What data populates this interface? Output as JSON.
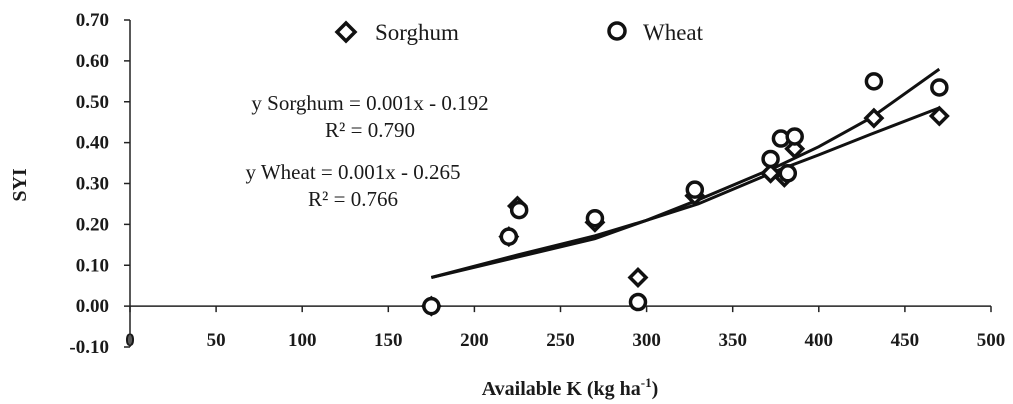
{
  "chart_data": {
    "type": "scatter",
    "title": "",
    "xlabel": "Available K (kg ha",
    "xlabel_sup": "-1",
    "xlabel_close": ")",
    "ylabel": "SYI",
    "xlim": [
      0,
      500
    ],
    "ylim": [
      -0.1,
      0.7
    ],
    "x_ticks": [
      0,
      50,
      100,
      150,
      200,
      250,
      300,
      350,
      400,
      450,
      500
    ],
    "y_ticks": [
      -0.1,
      0.0,
      0.1,
      0.2,
      0.3,
      0.4,
      0.5,
      0.6,
      0.7
    ],
    "x_tick_labels": [
      "0",
      "50",
      "100",
      "150",
      "200",
      "250",
      "300",
      "350",
      "400",
      "450",
      "500"
    ],
    "y_tick_labels": [
      "-0.10",
      "0.00",
      "0.10",
      "0.20",
      "0.30",
      "0.40",
      "0.50",
      "0.60",
      "0.70"
    ],
    "grid": false,
    "legend": {
      "placement": "top-center"
    },
    "series": [
      {
        "name": "Sorghum",
        "marker": "diamond",
        "color": "#111111",
        "x": [
          175,
          220,
          225,
          270,
          295,
          328,
          372,
          380,
          386,
          432,
          470
        ],
        "y": [
          0.0,
          0.17,
          0.245,
          0.205,
          0.07,
          0.27,
          0.325,
          0.315,
          0.385,
          0.46,
          0.465
        ]
      },
      {
        "name": "Wheat",
        "marker": "circle",
        "color": "#111111",
        "x": [
          175,
          220,
          226,
          270,
          295,
          328,
          372,
          378,
          382,
          386,
          432,
          470
        ],
        "y": [
          0.0,
          0.17,
          0.235,
          0.215,
          0.01,
          0.285,
          0.36,
          0.41,
          0.325,
          0.415,
          0.55,
          0.535
        ]
      }
    ],
    "trendlines": [
      {
        "name": "Sorghum",
        "x": [
          175,
          225,
          270,
          300,
          330,
          375,
          400,
          430,
          470
        ],
        "y": [
          0.07,
          0.125,
          0.172,
          0.21,
          0.25,
          0.33,
          0.37,
          0.42,
          0.485
        ]
      },
      {
        "name": "Wheat",
        "x": [
          175,
          225,
          270,
          300,
          330,
          375,
          400,
          430,
          470
        ],
        "y": [
          0.07,
          0.12,
          0.165,
          0.21,
          0.26,
          0.34,
          0.39,
          0.46,
          0.58
        ]
      }
    ],
    "annotations": {
      "sorghum_eq": "y Sorghum = 0.001x - 0.192",
      "sorghum_r2": "R² = 0.790",
      "wheat_eq": "y Wheat = 0.001x - 0.265",
      "wheat_r2": "R² = 0.766"
    }
  }
}
